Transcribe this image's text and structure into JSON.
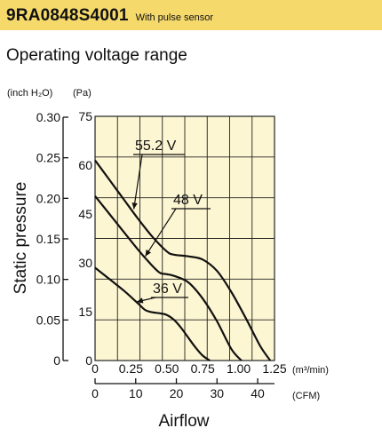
{
  "header": {
    "model": "9RA0848S4001",
    "model_note": "With pulse sensor",
    "subtitle": "Operating voltage range"
  },
  "colors": {
    "title_band": "#f5d96b",
    "plot_bg": "#fdf6d2",
    "grid": "#222222",
    "curve": "#111111"
  },
  "chart_data": {
    "type": "line",
    "title": "",
    "xlabel": "Airflow",
    "ylabel": "Static pressure",
    "x_unit_primary": "(m³/min)",
    "x_unit_secondary": "(CFM)",
    "y_unit_left": "(inch H₂O)",
    "y_unit_right": "(Pa)",
    "xlim": [
      0,
      1.25
    ],
    "ylim": [
      0,
      75
    ],
    "x_ticks": [
      {
        "value": 0,
        "label": "0"
      },
      {
        "value": 0.25,
        "label": "0.25"
      },
      {
        "value": 0.5,
        "label": "0.50"
      },
      {
        "value": 0.75,
        "label": "0.75"
      },
      {
        "value": 1.0,
        "label": "1.00"
      },
      {
        "value": 1.25,
        "label": "1.25"
      }
    ],
    "cfm_ticks": [
      {
        "value": 0,
        "label": "0"
      },
      {
        "value": 10,
        "label": "10"
      },
      {
        "value": 20,
        "label": "20"
      },
      {
        "value": 30,
        "label": "30"
      },
      {
        "value": 40,
        "label": "40"
      }
    ],
    "y_ticks_pa": [
      {
        "value": 0,
        "label": "0"
      },
      {
        "value": 15,
        "label": "15"
      },
      {
        "value": 30,
        "label": "30"
      },
      {
        "value": 45,
        "label": "45"
      },
      {
        "value": 60,
        "label": "60"
      },
      {
        "value": 75,
        "label": "75"
      }
    ],
    "y_ticks_inch": [
      {
        "value": 0,
        "label": "0"
      },
      {
        "value": 0.05,
        "label": "0.05"
      },
      {
        "value": 0.1,
        "label": "0.10"
      },
      {
        "value": 0.15,
        "label": "0.15"
      },
      {
        "value": 0.2,
        "label": "0.20"
      },
      {
        "value": 0.25,
        "label": "0.25"
      },
      {
        "value": 0.3,
        "label": "0.30"
      }
    ],
    "series": [
      {
        "name": "55.2 V",
        "x": [
          0,
          0.1,
          0.2,
          0.3,
          0.4,
          0.5,
          0.55,
          0.65,
          0.75,
          0.85,
          0.95,
          1.05,
          1.15,
          1.22
        ],
        "y": [
          61.5,
          55.5,
          49.5,
          43.5,
          38,
          33.5,
          32.5,
          32,
          31,
          27.5,
          21,
          13,
          4.5,
          0
        ]
      },
      {
        "name": "48 V",
        "x": [
          0,
          0.1,
          0.2,
          0.3,
          0.38,
          0.45,
          0.5,
          0.55,
          0.65,
          0.75,
          0.85,
          0.95,
          1.02
        ],
        "y": [
          50.5,
          45,
          39.5,
          34,
          30,
          27,
          26.5,
          26,
          24,
          19,
          12,
          3.5,
          0
        ]
      },
      {
        "name": "36 V",
        "x": [
          0,
          0.1,
          0.2,
          0.3,
          0.35,
          0.4,
          0.45,
          0.5,
          0.55,
          0.6,
          0.65,
          0.7,
          0.75,
          0.8
        ],
        "y": [
          28.5,
          25,
          21.5,
          17.5,
          15.5,
          14.8,
          14.5,
          14,
          12.5,
          10,
          7,
          4,
          1.5,
          0
        ]
      }
    ],
    "grid": true,
    "legend": "none"
  }
}
